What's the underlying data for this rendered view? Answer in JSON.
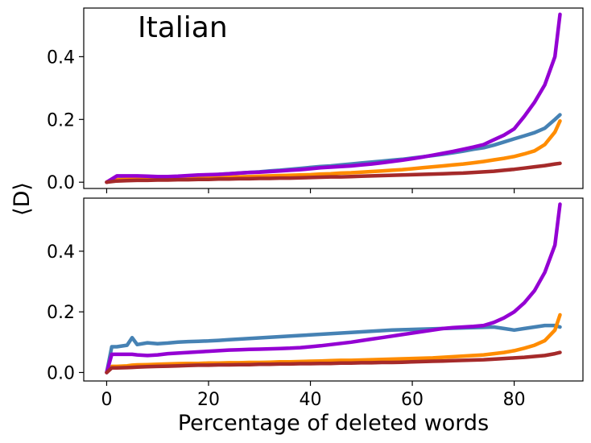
{
  "figure": {
    "ylabel": "⟨D⟩",
    "xlabel": "Percentage of deleted words"
  },
  "chart_data": [
    {
      "type": "line",
      "title": "Italian",
      "xlim": [
        -4.5,
        93.5
      ],
      "ylim": [
        -0.02,
        0.555
      ],
      "xticks": [
        0,
        20,
        40,
        60,
        80
      ],
      "yticks": [
        0.0,
        0.2,
        0.4
      ],
      "ytick_labels": [
        "0.0",
        "0.2",
        "0.4"
      ],
      "show_x_tick_labels": false,
      "grid": false,
      "x": [
        0,
        2,
        4,
        6,
        8,
        10,
        12,
        14,
        16,
        18,
        20,
        22,
        24,
        26,
        28,
        30,
        32,
        34,
        36,
        38,
        40,
        42,
        44,
        46,
        48,
        50,
        52,
        54,
        56,
        58,
        60,
        62,
        64,
        66,
        68,
        70,
        72,
        74,
        76,
        78,
        80,
        82,
        84,
        86,
        88,
        89
      ],
      "series": [
        {
          "color": "#4682b4",
          "values": [
            0,
            0.008,
            0.01,
            0.012,
            0.013,
            0.015,
            0.017,
            0.018,
            0.02,
            0.022,
            0.023,
            0.025,
            0.027,
            0.029,
            0.031,
            0.033,
            0.036,
            0.038,
            0.041,
            0.044,
            0.047,
            0.05,
            0.052,
            0.055,
            0.058,
            0.061,
            0.064,
            0.067,
            0.07,
            0.073,
            0.077,
            0.081,
            0.085,
            0.089,
            0.094,
            0.099,
            0.105,
            0.11,
            0.118,
            0.128,
            0.138,
            0.148,
            0.158,
            0.172,
            0.2,
            0.215
          ]
        },
        {
          "color": "#ff8c00",
          "values": [
            0,
            0.008,
            0.009,
            0.01,
            0.011,
            0.011,
            0.012,
            0.012,
            0.013,
            0.014,
            0.014,
            0.015,
            0.016,
            0.017,
            0.018,
            0.019,
            0.02,
            0.021,
            0.022,
            0.023,
            0.024,
            0.026,
            0.027,
            0.029,
            0.03,
            0.032,
            0.034,
            0.036,
            0.038,
            0.04,
            0.043,
            0.046,
            0.049,
            0.052,
            0.055,
            0.058,
            0.062,
            0.066,
            0.071,
            0.076,
            0.082,
            0.09,
            0.1,
            0.12,
            0.16,
            0.195
          ]
        },
        {
          "color": "#9400d3",
          "values": [
            0,
            0.02,
            0.02,
            0.02,
            0.019,
            0.018,
            0.018,
            0.019,
            0.021,
            0.023,
            0.024,
            0.025,
            0.027,
            0.029,
            0.031,
            0.032,
            0.034,
            0.036,
            0.038,
            0.04,
            0.043,
            0.046,
            0.048,
            0.05,
            0.052,
            0.055,
            0.058,
            0.062,
            0.066,
            0.07,
            0.075,
            0.08,
            0.086,
            0.092,
            0.098,
            0.105,
            0.112,
            0.12,
            0.135,
            0.15,
            0.17,
            0.21,
            0.255,
            0.31,
            0.4,
            0.535
          ]
        },
        {
          "color": "#a52a2a",
          "values": [
            0,
            0.004,
            0.005,
            0.006,
            0.006,
            0.007,
            0.007,
            0.008,
            0.008,
            0.009,
            0.009,
            0.01,
            0.01,
            0.011,
            0.011,
            0.012,
            0.012,
            0.013,
            0.013,
            0.014,
            0.015,
            0.016,
            0.017,
            0.017,
            0.018,
            0.019,
            0.02,
            0.021,
            0.022,
            0.023,
            0.024,
            0.025,
            0.026,
            0.027,
            0.028,
            0.029,
            0.031,
            0.033,
            0.035,
            0.038,
            0.041,
            0.045,
            0.049,
            0.053,
            0.058,
            0.06
          ]
        }
      ]
    },
    {
      "type": "line",
      "title": "",
      "xlim": [
        -4.5,
        93.5
      ],
      "ylim": [
        -0.028,
        0.575
      ],
      "xticks": [
        0,
        20,
        40,
        60,
        80
      ],
      "yticks": [
        0.0,
        0.2,
        0.4
      ],
      "ytick_labels": [
        "0.0",
        "0.2",
        "0.4"
      ],
      "show_x_tick_labels": true,
      "grid": false,
      "x": [
        0,
        1,
        2,
        4,
        5,
        6,
        8,
        10,
        12,
        14,
        16,
        18,
        20,
        22,
        24,
        26,
        28,
        30,
        32,
        34,
        36,
        38,
        40,
        42,
        44,
        46,
        48,
        50,
        52,
        54,
        56,
        58,
        60,
        62,
        64,
        66,
        68,
        70,
        72,
        74,
        76,
        78,
        80,
        82,
        84,
        86,
        88,
        89
      ],
      "series": [
        {
          "color": "#4682b4",
          "values": [
            0,
            0.085,
            0.085,
            0.09,
            0.115,
            0.092,
            0.098,
            0.095,
            0.097,
            0.1,
            0.102,
            0.103,
            0.104,
            0.106,
            0.108,
            0.11,
            0.112,
            0.114,
            0.116,
            0.118,
            0.12,
            0.122,
            0.124,
            0.126,
            0.128,
            0.13,
            0.132,
            0.134,
            0.136,
            0.138,
            0.14,
            0.141,
            0.142,
            0.143,
            0.144,
            0.145,
            0.146,
            0.147,
            0.148,
            0.149,
            0.15,
            0.145,
            0.14,
            0.145,
            0.15,
            0.155,
            0.155,
            0.15
          ]
        },
        {
          "color": "#ff8c00",
          "values": [
            0,
            0.02,
            0.02,
            0.022,
            0.024,
            0.025,
            0.026,
            0.027,
            0.028,
            0.029,
            0.03,
            0.03,
            0.031,
            0.031,
            0.032,
            0.032,
            0.033,
            0.033,
            0.034,
            0.035,
            0.035,
            0.036,
            0.037,
            0.038,
            0.039,
            0.04,
            0.04,
            0.041,
            0.042,
            0.043,
            0.044,
            0.045,
            0.046,
            0.047,
            0.048,
            0.05,
            0.052,
            0.054,
            0.056,
            0.058,
            0.062,
            0.066,
            0.072,
            0.08,
            0.09,
            0.105,
            0.14,
            0.19
          ]
        },
        {
          "color": "#9400d3",
          "values": [
            0,
            0.06,
            0.06,
            0.06,
            0.06,
            0.058,
            0.056,
            0.058,
            0.062,
            0.064,
            0.066,
            0.068,
            0.07,
            0.072,
            0.074,
            0.075,
            0.076,
            0.077,
            0.078,
            0.079,
            0.08,
            0.082,
            0.085,
            0.088,
            0.092,
            0.096,
            0.1,
            0.105,
            0.11,
            0.115,
            0.12,
            0.125,
            0.13,
            0.135,
            0.14,
            0.145,
            0.148,
            0.15,
            0.152,
            0.155,
            0.165,
            0.18,
            0.2,
            0.23,
            0.27,
            0.33,
            0.42,
            0.555
          ]
        },
        {
          "color": "#a52a2a",
          "values": [
            0,
            0.015,
            0.015,
            0.016,
            0.017,
            0.018,
            0.019,
            0.02,
            0.021,
            0.022,
            0.023,
            0.024,
            0.024,
            0.025,
            0.025,
            0.026,
            0.026,
            0.027,
            0.027,
            0.028,
            0.028,
            0.029,
            0.029,
            0.03,
            0.03,
            0.031,
            0.031,
            0.032,
            0.032,
            0.033,
            0.033,
            0.034,
            0.035,
            0.036,
            0.037,
            0.038,
            0.039,
            0.04,
            0.041,
            0.042,
            0.044,
            0.046,
            0.048,
            0.05,
            0.053,
            0.056,
            0.062,
            0.066
          ]
        }
      ]
    }
  ]
}
